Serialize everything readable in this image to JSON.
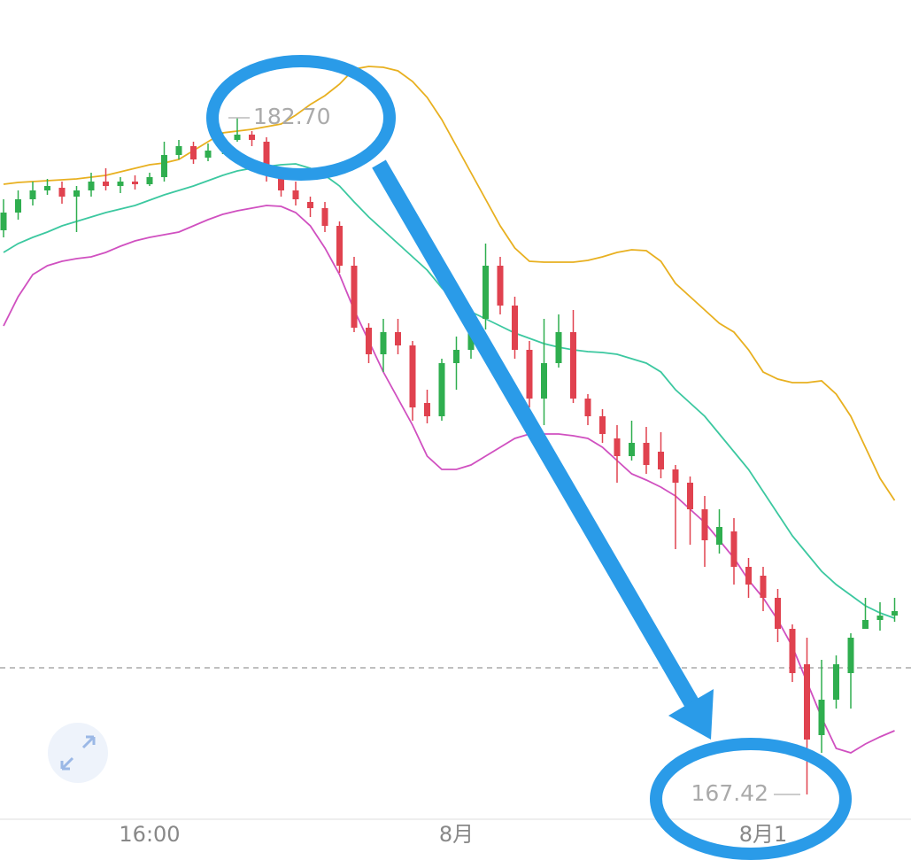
{
  "chart_data": {
    "type": "candlestick",
    "categories": [
      null,
      null,
      null,
      null,
      null,
      null,
      null,
      null,
      null,
      null,
      "16:00",
      null,
      null,
      null,
      null,
      null,
      null,
      null,
      null,
      null,
      null,
      null,
      null,
      null,
      null,
      null,
      null,
      null,
      null,
      null,
      null,
      "8月",
      null,
      null,
      null,
      null,
      null,
      null,
      null,
      null,
      null,
      null,
      null,
      null,
      null,
      null,
      null,
      null,
      null,
      null,
      null,
      null,
      "8月1",
      null,
      null,
      null,
      null,
      null,
      null,
      null,
      null,
      null
    ],
    "open": [
      180.16,
      180.56,
      180.86,
      181.06,
      181.12,
      180.92,
      181.06,
      181.26,
      181.16,
      181.26,
      181.2,
      181.36,
      181.86,
      182.06,
      181.8,
      181.96,
      182.2,
      182.32,
      182.16,
      181.46,
      181.06,
      180.8,
      180.66,
      180.26,
      179.36,
      177.96,
      177.36,
      177.86,
      177.56,
      176.26,
      175.96,
      177.16,
      177.46,
      178.16,
      179.36,
      178.46,
      177.46,
      176.36,
      177.16,
      177.86,
      176.36,
      175.96,
      175.46,
      175.06,
      175.36,
      175.16,
      174.76,
      174.46,
      173.86,
      173.06,
      173.36,
      172.56,
      172.36,
      171.86,
      171.16,
      170.36,
      168.76,
      169.56,
      170.16,
      171.16,
      171.36,
      171.46
    ],
    "high": [
      180.86,
      181.06,
      181.26,
      181.32,
      181.26,
      181.16,
      181.46,
      181.56,
      181.36,
      181.4,
      181.46,
      182.16,
      182.2,
      182.16,
      182.12,
      182.36,
      182.7,
      182.4,
      182.26,
      181.56,
      181.26,
      180.92,
      180.8,
      180.36,
      179.56,
      178.06,
      178.16,
      178.16,
      177.66,
      176.56,
      177.26,
      177.76,
      178.26,
      179.86,
      179.56,
      178.66,
      177.66,
      178.16,
      178.26,
      178.36,
      176.46,
      176.12,
      175.76,
      175.86,
      175.72,
      175.6,
      174.86,
      174.6,
      174.16,
      173.86,
      173.66,
      172.76,
      172.56,
      172.06,
      171.26,
      170.96,
      170.46,
      170.56,
      171.06,
      171.86,
      171.76,
      171.86
    ],
    "low": [
      180.0,
      180.4,
      180.72,
      180.96,
      180.76,
      180.12,
      180.92,
      181.06,
      181.0,
      181.08,
      181.16,
      181.26,
      181.76,
      181.66,
      181.72,
      181.88,
      182.16,
      182.06,
      181.26,
      180.92,
      180.72,
      180.46,
      180.12,
      179.2,
      177.86,
      177.16,
      176.96,
      177.36,
      175.86,
      175.8,
      175.86,
      176.56,
      177.26,
      177.92,
      178.26,
      177.26,
      176.16,
      175.76,
      177.06,
      176.26,
      175.76,
      175.36,
      174.46,
      174.96,
      174.66,
      174.56,
      172.96,
      173.06,
      172.56,
      172.86,
      172.16,
      171.86,
      171.56,
      170.86,
      169.96,
      167.42,
      168.36,
      169.36,
      169.36,
      171.16,
      171.12,
      171.32
    ],
    "close": [
      180.56,
      180.86,
      181.06,
      181.16,
      180.92,
      181.06,
      181.26,
      181.16,
      181.26,
      181.2,
      181.36,
      181.86,
      182.06,
      181.76,
      181.96,
      182.2,
      182.32,
      182.2,
      181.46,
      181.06,
      180.86,
      180.66,
      180.26,
      179.36,
      177.96,
      177.36,
      177.86,
      177.56,
      176.16,
      175.96,
      177.16,
      177.46,
      177.96,
      179.36,
      178.46,
      177.46,
      176.36,
      177.16,
      177.86,
      176.36,
      175.96,
      175.56,
      175.06,
      175.36,
      174.86,
      174.76,
      174.46,
      173.86,
      173.16,
      173.46,
      172.56,
      172.16,
      171.86,
      171.16,
      170.16,
      168.66,
      169.56,
      170.36,
      170.96,
      171.36,
      171.46,
      171.56
    ],
    "up_color": "#2fae4f",
    "down_color": "#e0424f",
    "lines": [
      {
        "color": "#e8b020",
        "values": [
          181.2,
          181.24,
          181.26,
          181.28,
          181.3,
          181.32,
          181.36,
          181.4,
          181.48,
          181.56,
          181.64,
          181.68,
          181.76,
          181.96,
          182.16,
          182.36,
          182.4,
          182.44,
          182.5,
          182.56,
          182.76,
          183.0,
          183.2,
          183.46,
          183.8,
          183.86,
          183.84,
          183.76,
          183.52,
          183.16,
          182.66,
          182.06,
          181.46,
          180.86,
          180.26,
          179.76,
          179.46,
          179.44,
          179.44,
          179.44,
          179.48,
          179.56,
          179.66,
          179.72,
          179.7,
          179.46,
          178.96,
          178.66,
          178.36,
          178.06,
          177.86,
          177.46,
          176.96,
          176.8,
          176.72,
          176.72,
          176.76,
          176.46,
          175.96,
          175.26,
          174.56,
          174.06
        ]
      },
      {
        "color": "#3cc8a0",
        "values": [
          179.66,
          179.86,
          180.0,
          180.12,
          180.26,
          180.36,
          180.46,
          180.56,
          180.64,
          180.72,
          180.84,
          180.96,
          181.06,
          181.16,
          181.28,
          181.4,
          181.5,
          181.56,
          181.6,
          181.64,
          181.66,
          181.56,
          181.4,
          181.16,
          180.8,
          180.46,
          180.16,
          179.86,
          179.56,
          179.26,
          178.86,
          178.52,
          178.32,
          178.16,
          178.0,
          177.84,
          177.72,
          177.6,
          177.52,
          177.46,
          177.42,
          177.4,
          177.36,
          177.26,
          177.16,
          176.96,
          176.56,
          176.26,
          175.96,
          175.56,
          175.16,
          174.76,
          174.26,
          173.76,
          173.26,
          172.86,
          172.46,
          172.16,
          171.92,
          171.68,
          171.52,
          171.4
        ]
      },
      {
        "color": "#d050c0",
        "values": [
          178.0,
          178.66,
          179.16,
          179.36,
          179.46,
          179.52,
          179.56,
          179.66,
          179.8,
          179.92,
          180.0,
          180.06,
          180.12,
          180.26,
          180.4,
          180.52,
          180.6,
          180.66,
          180.72,
          180.7,
          180.56,
          180.26,
          179.76,
          179.16,
          178.36,
          177.66,
          176.96,
          176.36,
          175.76,
          175.06,
          174.76,
          174.76,
          174.86,
          175.06,
          175.26,
          175.46,
          175.56,
          175.56,
          175.56,
          175.52,
          175.46,
          175.26,
          174.96,
          174.66,
          174.52,
          174.36,
          174.16,
          173.86,
          173.56,
          173.16,
          172.76,
          172.26,
          171.86,
          171.36,
          170.76,
          169.96,
          169.16,
          168.46,
          168.36,
          168.56,
          168.72,
          168.86
        ]
      }
    ],
    "hline": 170.28,
    "high_marker": {
      "value": 182.7,
      "label": "182.70"
    },
    "low_marker": 167.42,
    "ylim": [
      166.86,
      185.36
    ]
  }
}
